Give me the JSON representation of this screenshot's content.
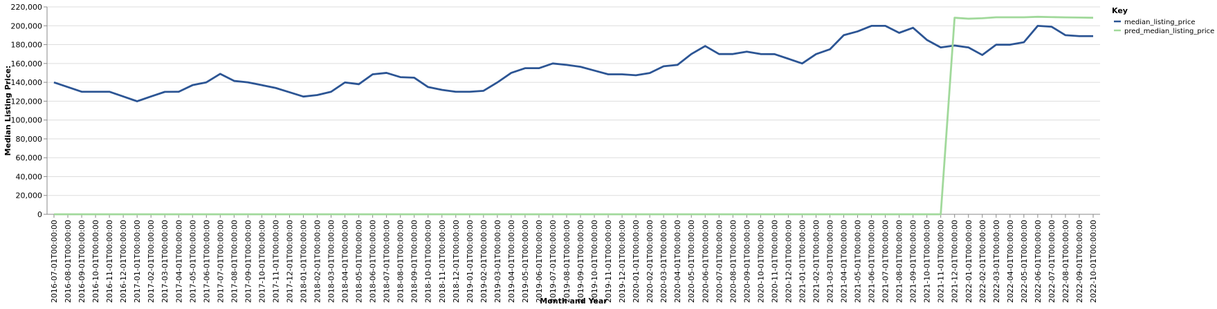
{
  "chart_data": {
    "type": "line",
    "xlabel": "Month and Year",
    "ylabel": "Median Listing Price:",
    "ylim": [
      0,
      220000
    ],
    "yticks": [
      "0",
      "20,000",
      "40,000",
      "60,000",
      "80,000",
      "100,000",
      "120,000",
      "140,000",
      "160,000",
      "180,000",
      "200,000",
      "220,000"
    ],
    "grid": true,
    "legend": {
      "title": "Key",
      "placement": "right"
    },
    "x": [
      "2016-07-01T00:00:00",
      "2016-08-01T00:00:00",
      "2016-09-01T00:00:00",
      "2016-10-01T00:00:00",
      "2016-11-01T00:00:00",
      "2016-12-01T00:00:00",
      "2017-01-01T00:00:00",
      "2017-02-01T00:00:00",
      "2017-03-01T00:00:00",
      "2017-04-01T00:00:00",
      "2017-05-01T00:00:00",
      "2017-06-01T00:00:00",
      "2017-07-01T00:00:00",
      "2017-08-01T00:00:00",
      "2017-09-01T00:00:00",
      "2017-10-01T00:00:00",
      "2017-11-01T00:00:00",
      "2017-12-01T00:00:00",
      "2018-01-01T00:00:00",
      "2018-02-01T00:00:00",
      "2018-03-01T00:00:00",
      "2018-04-01T00:00:00",
      "2018-05-01T00:00:00",
      "2018-06-01T00:00:00",
      "2018-07-01T00:00:00",
      "2018-08-01T00:00:00",
      "2018-09-01T00:00:00",
      "2018-10-01T00:00:00",
      "2018-11-01T00:00:00",
      "2018-12-01T00:00:00",
      "2019-01-01T00:00:00",
      "2019-02-01T00:00:00",
      "2019-03-01T00:00:00",
      "2019-04-01T00:00:00",
      "2019-05-01T00:00:00",
      "2019-06-01T00:00:00",
      "2019-07-01T00:00:00",
      "2019-08-01T00:00:00",
      "2019-09-01T00:00:00",
      "2019-10-01T00:00:00",
      "2019-11-01T00:00:00",
      "2019-12-01T00:00:00",
      "2020-01-01T00:00:00",
      "2020-02-01T00:00:00",
      "2020-03-01T00:00:00",
      "2020-04-01T00:00:00",
      "2020-05-01T00:00:00",
      "2020-06-01T00:00:00",
      "2020-07-01T00:00:00",
      "2020-08-01T00:00:00",
      "2020-09-01T00:00:00",
      "2020-10-01T00:00:00",
      "2020-11-01T00:00:00",
      "2020-12-01T00:00:00",
      "2021-01-01T00:00:00",
      "2021-02-01T00:00:00",
      "2021-03-01T00:00:00",
      "2021-04-01T00:00:00",
      "2021-05-01T00:00:00",
      "2021-06-01T00:00:00",
      "2021-07-01T00:00:00",
      "2021-08-01T00:00:00",
      "2021-09-01T00:00:00",
      "2021-10-01T00:00:00",
      "2021-11-01T00:00:00",
      "2021-12-01T00:00:00",
      "2022-01-01T00:00:00",
      "2022-02-01T00:00:00",
      "2022-03-01T00:00:00",
      "2022-04-01T00:00:00",
      "2022-05-01T00:00:00",
      "2022-06-01T00:00:00",
      "2022-07-01T00:00:00",
      "2022-08-01T00:00:00",
      "2022-09-01T00:00:00",
      "2022-10-01T00:00:00"
    ],
    "series": [
      {
        "name": "median_listing_price",
        "color": "#2c5594",
        "values": [
          139900,
          135000,
          130000,
          130000,
          130000,
          125000,
          119900,
          125000,
          129900,
          130000,
          137000,
          140000,
          149000,
          141500,
          140000,
          137000,
          134000,
          129500,
          124900,
          126500,
          130000,
          139900,
          138000,
          148500,
          150000,
          145500,
          144900,
          135000,
          132000,
          130000,
          130000,
          131000,
          139900,
          150000,
          155000,
          155000,
          160000,
          158500,
          156500,
          152500,
          148500,
          148500,
          147500,
          149900,
          157000,
          158500,
          170000,
          178500,
          170000,
          170000,
          172500,
          170000,
          169900,
          165000,
          160000,
          169900,
          175000,
          190000,
          194000,
          199900,
          199900,
          192500,
          197900,
          185000,
          177000,
          179000,
          177000,
          169000,
          179900,
          179900,
          182500,
          199900,
          199000,
          190000,
          189000,
          189000
        ]
      },
      {
        "name": "pred_median_listing_price",
        "color": "#a1d99b",
        "values": [
          0,
          0,
          0,
          0,
          0,
          0,
          0,
          0,
          0,
          0,
          0,
          0,
          0,
          0,
          0,
          0,
          0,
          0,
          0,
          0,
          0,
          0,
          0,
          0,
          0,
          0,
          0,
          0,
          0,
          0,
          0,
          0,
          0,
          0,
          0,
          0,
          0,
          0,
          0,
          0,
          0,
          0,
          0,
          0,
          0,
          0,
          0,
          0,
          0,
          0,
          0,
          0,
          0,
          0,
          0,
          0,
          0,
          0,
          0,
          0,
          0,
          0,
          0,
          0,
          0,
          208500,
          207500,
          208000,
          209000,
          209000,
          209000,
          209500,
          209200,
          208900,
          208700,
          208500
        ]
      }
    ]
  }
}
